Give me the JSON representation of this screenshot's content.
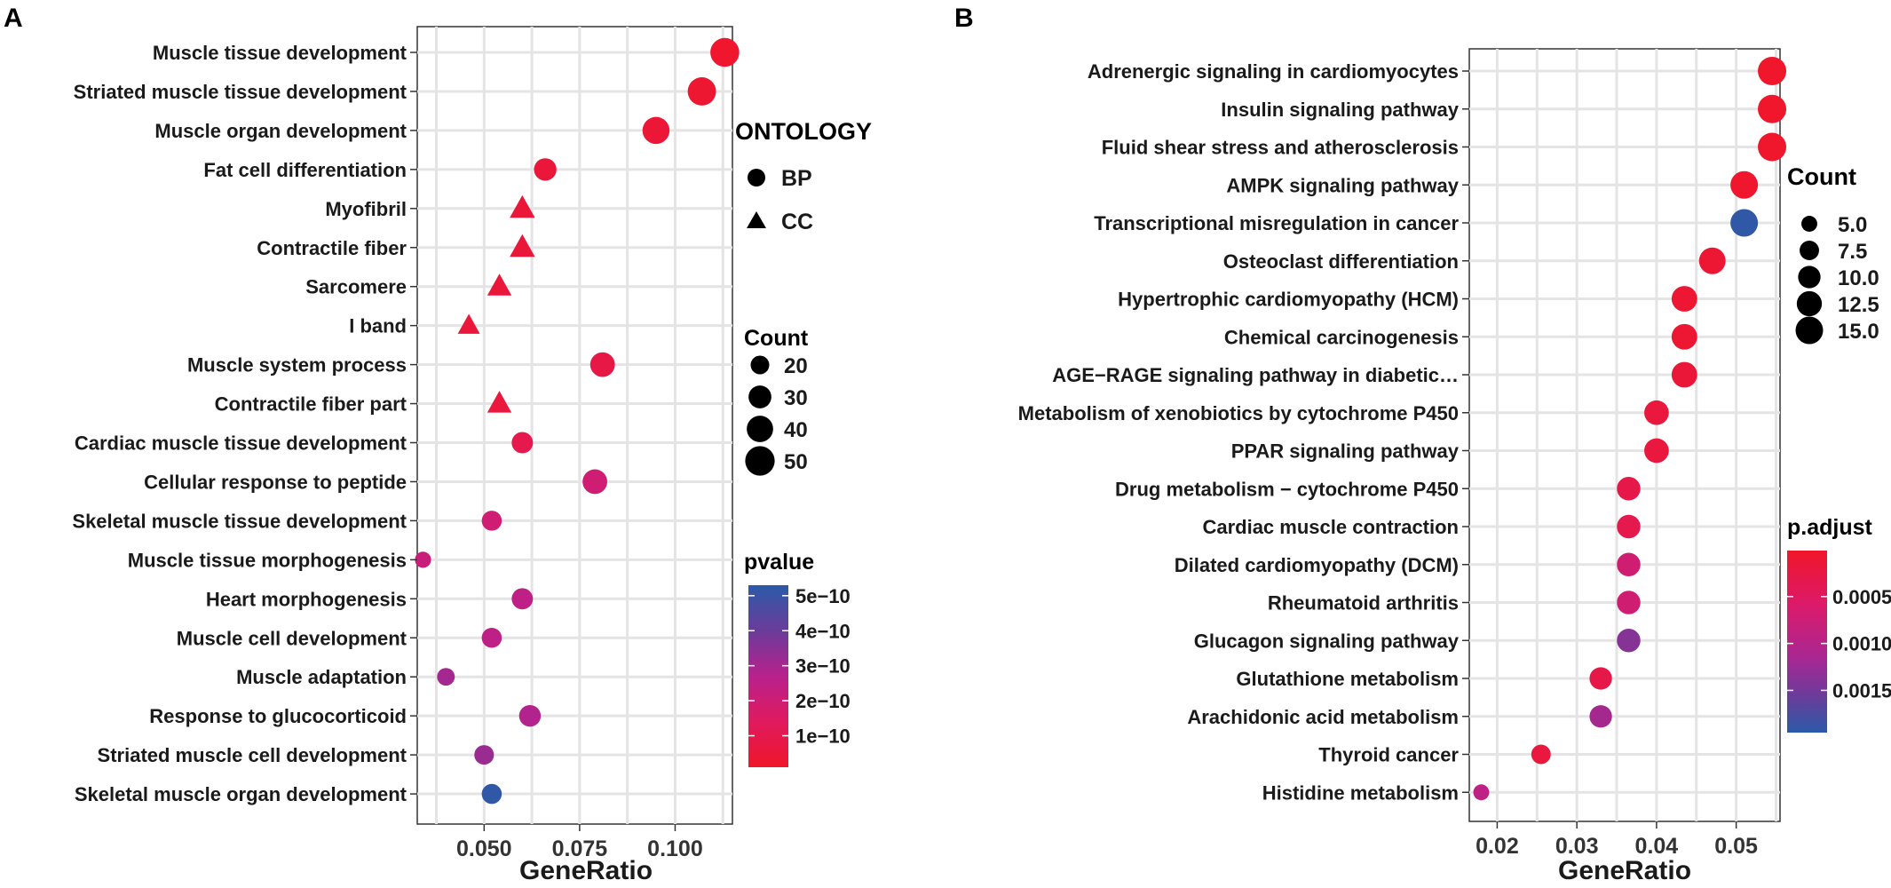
{
  "chart_data": [
    {
      "panel": "A",
      "type": "scatter",
      "xlabel": "GeneRatio",
      "xlim": [
        0.0325,
        0.115
      ],
      "xticks": [
        "0.050",
        "0.075",
        "0.100"
      ],
      "xtick_values": [
        0.05,
        0.075,
        0.1
      ],
      "grid": true,
      "points": [
        {
          "term": "Muscle tissue development",
          "x": 0.113,
          "count": 48,
          "pvalue": 2e-11,
          "ontology": "BP"
        },
        {
          "term": "Striated muscle tissue development",
          "x": 0.107,
          "count": 46,
          "pvalue": 3e-11,
          "ontology": "BP"
        },
        {
          "term": "Muscle organ development",
          "x": 0.095,
          "count": 42,
          "pvalue": 4e-11,
          "ontology": "BP"
        },
        {
          "term": "Fat cell differentiation",
          "x": 0.066,
          "count": 29,
          "pvalue": 5e-11,
          "ontology": "BP"
        },
        {
          "term": "Myofibril",
          "x": 0.06,
          "count": 26,
          "pvalue": 5e-11,
          "ontology": "CC"
        },
        {
          "term": "Contractile fiber",
          "x": 0.06,
          "count": 26,
          "pvalue": 5e-11,
          "ontology": "CC"
        },
        {
          "term": "Sarcomere",
          "x": 0.054,
          "count": 24,
          "pvalue": 5e-11,
          "ontology": "CC"
        },
        {
          "term": "I band",
          "x": 0.046,
          "count": 20,
          "pvalue": 5e-11,
          "ontology": "CC"
        },
        {
          "term": "Muscle system process",
          "x": 0.081,
          "count": 35,
          "pvalue": 8e-11,
          "ontology": "BP"
        },
        {
          "term": "Contractile fiber part",
          "x": 0.054,
          "count": 24,
          "pvalue": 6e-11,
          "ontology": "CC"
        },
        {
          "term": "Cardiac muscle tissue development",
          "x": 0.06,
          "count": 26,
          "pvalue": 1e-10,
          "ontology": "BP"
        },
        {
          "term": "Cellular response to peptide",
          "x": 0.079,
          "count": 35,
          "pvalue": 2e-10,
          "ontology": "BP"
        },
        {
          "term": "Skeletal muscle tissue development",
          "x": 0.052,
          "count": 23,
          "pvalue": 2e-10,
          "ontology": "BP"
        },
        {
          "term": "Muscle tissue morphogenesis",
          "x": 0.034,
          "count": 15,
          "pvalue": 2.2e-10,
          "ontology": "BP"
        },
        {
          "term": "Heart morphogenesis",
          "x": 0.06,
          "count": 26,
          "pvalue": 2.5e-10,
          "ontology": "BP"
        },
        {
          "term": "Muscle cell development",
          "x": 0.052,
          "count": 23,
          "pvalue": 2.5e-10,
          "ontology": "BP"
        },
        {
          "term": "Muscle adaptation",
          "x": 0.04,
          "count": 18,
          "pvalue": 3e-10,
          "ontology": "BP"
        },
        {
          "term": "Response to glucocorticoid",
          "x": 0.062,
          "count": 27,
          "pvalue": 2.8e-10,
          "ontology": "BP"
        },
        {
          "term": "Striated muscle cell development",
          "x": 0.05,
          "count": 22,
          "pvalue": 3.2e-10,
          "ontology": "BP"
        },
        {
          "term": "Skeletal muscle organ development",
          "x": 0.052,
          "count": 23,
          "pvalue": 5.2e-10,
          "ontology": "BP"
        }
      ],
      "legend_ontology": {
        "title": "ONTOLOGY",
        "entries": [
          "BP",
          "CC"
        ]
      },
      "legend_count": {
        "title": "Count",
        "labels": [
          "20",
          "30",
          "40",
          "50"
        ],
        "values": [
          20,
          30,
          40,
          50
        ]
      },
      "legend_color": {
        "title": "pvalue",
        "labels": [
          "5e−10",
          "4e−10",
          "3e−10",
          "2e−10",
          "1e−10"
        ],
        "values": [
          5e-10,
          4e-10,
          3e-10,
          2e-10,
          1e-10
        ],
        "range": [
          1e-11,
          5.3e-10
        ]
      }
    },
    {
      "panel": "B",
      "type": "scatter",
      "xlabel": "GeneRatio",
      "xlim": [
        0.0165,
        0.0555
      ],
      "xticks": [
        "0.02",
        "0.03",
        "0.04",
        "0.05"
      ],
      "xtick_values": [
        0.02,
        0.03,
        0.04,
        0.05
      ],
      "grid": true,
      "points": [
        {
          "term": "Adrenergic signaling in cardiomyocytes",
          "x": 0.0545,
          "count": 16,
          "padj": 2e-05
        },
        {
          "term": "Insulin signaling pathway",
          "x": 0.0545,
          "count": 16,
          "padj": 2e-05
        },
        {
          "term": "Fluid shear stress and atherosclerosis",
          "x": 0.0545,
          "count": 16,
          "padj": 2e-05
        },
        {
          "term": "AMPK signaling pathway",
          "x": 0.051,
          "count": 15,
          "padj": 5e-05
        },
        {
          "term": "Transcriptional misregulation in cancer",
          "x": 0.051,
          "count": 15,
          "padj": 0.0019
        },
        {
          "term": "Osteoclast differentiation",
          "x": 0.047,
          "count": 14,
          "padj": 0.0001
        },
        {
          "term": "Hypertrophic cardiomyopathy (HCM)",
          "x": 0.0435,
          "count": 13,
          "padj": 0.0001
        },
        {
          "term": "Chemical carcinogenesis",
          "x": 0.0435,
          "count": 13,
          "padj": 0.0001
        },
        {
          "term": "AGE−RAGE signaling pathway in diabetic…",
          "x": 0.0435,
          "count": 13,
          "padj": 0.00015
        },
        {
          "term": "Metabolism of xenobiotics by cytochrome P450",
          "x": 0.04,
          "count": 12,
          "padj": 0.0002
        },
        {
          "term": "PPAR signaling pathway",
          "x": 0.04,
          "count": 12,
          "padj": 0.0002
        },
        {
          "term": "Drug metabolism − cytochrome P450",
          "x": 0.0365,
          "count": 11,
          "padj": 0.0003
        },
        {
          "term": "Cardiac muscle contraction",
          "x": 0.0365,
          "count": 11,
          "padj": 0.00035
        },
        {
          "term": "Dilated cardiomyopathy (DCM)",
          "x": 0.0365,
          "count": 11,
          "padj": 0.0007
        },
        {
          "term": "Rheumatoid arthritis",
          "x": 0.0365,
          "count": 11,
          "padj": 0.0007
        },
        {
          "term": "Glucagon signaling pathway",
          "x": 0.0365,
          "count": 11,
          "padj": 0.0013
        },
        {
          "term": "Glutathione metabolism",
          "x": 0.033,
          "count": 10,
          "padj": 0.0003
        },
        {
          "term": "Arachidonic acid metabolism",
          "x": 0.033,
          "count": 10,
          "padj": 0.0011
        },
        {
          "term": "Thyroid cancer",
          "x": 0.0255,
          "count": 7.5,
          "padj": 0.0002
        },
        {
          "term": "Histidine metabolism",
          "x": 0.018,
          "count": 5,
          "padj": 0.0009
        }
      ],
      "legend_count": {
        "title": "Count",
        "labels": [
          "5.0",
          "7.5",
          "10.0",
          "12.5",
          "15.0"
        ],
        "values": [
          5,
          7.5,
          10,
          12.5,
          15
        ]
      },
      "legend_color": {
        "title": "p.adjust",
        "labels": [
          "0.0005",
          "0.0010",
          "0.0015"
        ],
        "values": [
          0.0005,
          0.001,
          0.0015
        ],
        "range": [
          1e-05,
          0.00195
        ]
      }
    }
  ]
}
